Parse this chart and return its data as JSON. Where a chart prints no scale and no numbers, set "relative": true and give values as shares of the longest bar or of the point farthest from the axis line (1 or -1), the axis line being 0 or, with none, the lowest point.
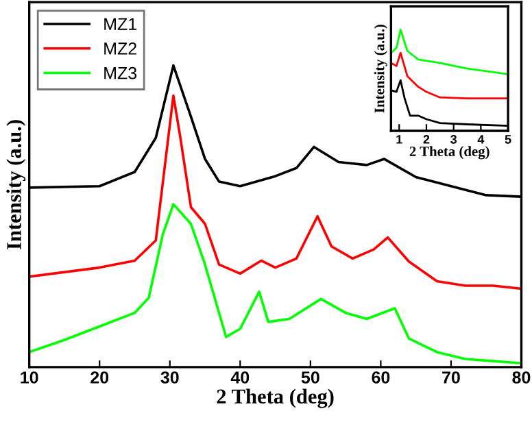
{
  "chart_data": [
    {
      "type": "line",
      "xlabel": "2 Theta (deg)",
      "ylabel": "Intensity (a.u.)",
      "relative": true,
      "xlim": [
        10,
        80
      ],
      "xticks": [
        10,
        20,
        30,
        40,
        50,
        60,
        70,
        80
      ],
      "legend": "top left",
      "tick_labels": "x",
      "series": [
        {
          "name": "MZ1",
          "color": "#000000",
          "x": [
            10,
            20,
            25,
            28,
            30.5,
            33,
            35,
            37,
            40,
            45,
            48,
            50.5,
            54,
            58,
            60.5,
            65,
            70,
            75,
            80
          ],
          "values": [
            0.595,
            0.6,
            0.647,
            0.76,
            1.0,
            0.83,
            0.69,
            0.615,
            0.6,
            0.633,
            0.66,
            0.73,
            0.68,
            0.67,
            0.69,
            0.63,
            0.6,
            0.57,
            0.565
          ]
        },
        {
          "name": "MZ2",
          "color": "#ff0000",
          "x": [
            10,
            20,
            25,
            28,
            30.5,
            31.5,
            33,
            35,
            37,
            40,
            43,
            45,
            48,
            51,
            53,
            56,
            59,
            61,
            64,
            68,
            72,
            76,
            80
          ],
          "values": [
            0.3,
            0.33,
            0.353,
            0.42,
            0.9,
            0.76,
            0.53,
            0.475,
            0.34,
            0.31,
            0.353,
            0.33,
            0.36,
            0.5,
            0.4,
            0.36,
            0.39,
            0.43,
            0.35,
            0.285,
            0.27,
            0.27,
            0.26
          ]
        },
        {
          "name": "MZ3",
          "color": "#00ff00",
          "x": [
            10,
            15,
            20,
            25,
            27,
            29,
            30.5,
            33,
            35,
            38,
            40,
            42.7,
            44,
            47,
            51.5,
            55,
            58,
            62,
            64,
            68,
            72,
            76,
            80
          ],
          "values": [
            0.05,
            0.09,
            0.135,
            0.18,
            0.23,
            0.44,
            0.54,
            0.475,
            0.34,
            0.1,
            0.127,
            0.25,
            0.15,
            0.16,
            0.226,
            0.18,
            0.16,
            0.195,
            0.095,
            0.05,
            0.027,
            0.02,
            0.013
          ]
        }
      ]
    },
    {
      "type": "line",
      "xlabel": "2 Theta (deg)",
      "ylabel": "Intensity (a.u.)",
      "relative": true,
      "xlim": [
        0.7,
        5
      ],
      "xticks": [
        1,
        2,
        3,
        4,
        5
      ],
      "tick_labels": "x",
      "series": [
        {
          "color": "#00ff00",
          "x": [
            0.7,
            0.9,
            1.05,
            1.3,
            1.7,
            2.5,
            3.5,
            5
          ],
          "values": [
            0.77,
            0.82,
            1.0,
            0.79,
            0.705,
            0.67,
            0.615,
            0.56
          ]
        },
        {
          "color": "#ff0000",
          "x": [
            0.7,
            0.9,
            1.05,
            1.3,
            1.7,
            2,
            2.5,
            3.5,
            5
          ],
          "values": [
            0.67,
            0.64,
            0.77,
            0.54,
            0.435,
            0.385,
            0.33,
            0.32,
            0.32
          ]
        },
        {
          "color": "#000000",
          "x": [
            0.7,
            0.9,
            1.05,
            1.2,
            1.4,
            1.7,
            2,
            2.5,
            3.5,
            5
          ],
          "values": [
            0.4,
            0.385,
            0.5,
            0.32,
            0.15,
            0.15,
            0.115,
            0.077,
            0.064,
            0.05
          ]
        }
      ]
    }
  ]
}
